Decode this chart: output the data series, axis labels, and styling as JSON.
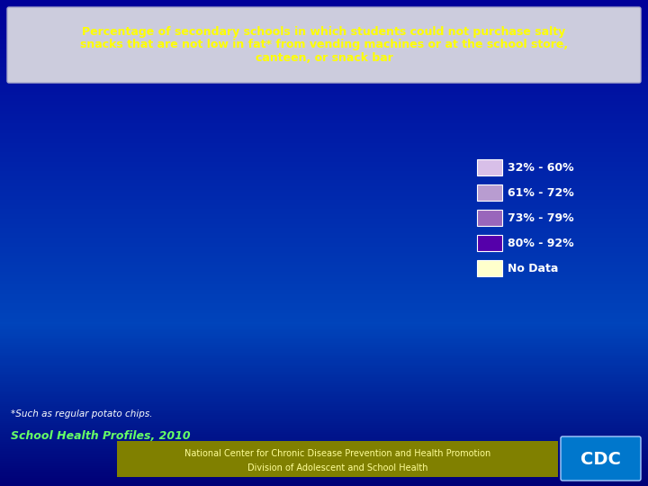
{
  "title_line1": "Percentage of secondary schools in which students could not purchase salty",
  "title_line2": "snacks that are not low in fat* from vending machines or at the school store,",
  "title_line3": "canteen, or snack bar",
  "title_color": "#FFFF00",
  "background_color": "#0000AA",
  "bg_gradient_top": "#0033CC",
  "bg_gradient_bottom": "#000088",
  "legend_labels": [
    "32% - 60%",
    "61% - 72%",
    "73% - 79%",
    "80% - 92%",
    "No Data"
  ],
  "legend_colors": [
    "#D8BFE8",
    "#B89CD0",
    "#9966BB",
    "#5500AA",
    "#FFFFCC"
  ],
  "legend_text_color": "#FFFFFF",
  "footnote": "*Such as regular potato chips.",
  "footnote_color": "#FFFFFF",
  "source_label": "School Health Profiles, 2010",
  "source_color": "#66FF66",
  "bottom_bar_color": "#808000",
  "bottom_text1": "National Center for Chronic Disease Prevention and Health Promotion",
  "bottom_text2": "Division of Adolescent and School Health",
  "bottom_text_color": "#FFFF99",
  "state_colors": {
    "AL": "#5500AA",
    "AK": "#9966BB",
    "AZ": "#9966BB",
    "AR": "#9966BB",
    "CA": "#5500AA",
    "CO": "#B89CD0",
    "CT": "#9966BB",
    "DE": "#9966BB",
    "FL": "#B89CD0",
    "GA": "#B89CD0",
    "HI": "#D8BFE8",
    "ID": "#B89CD0",
    "IL": "#FFFFCC",
    "IN": "#9966BB",
    "IA": "#B89CD0",
    "KS": "#B89CD0",
    "KY": "#5500AA",
    "LA": "#5500AA",
    "ME": "#5500AA",
    "MD": "#9966BB",
    "MA": "#9966BB",
    "MI": "#5500AA",
    "MN": "#9966BB",
    "MS": "#5500AA",
    "MO": "#9966BB",
    "MT": "#B89CD0",
    "NE": "#B89CD0",
    "NV": "#5500AA",
    "NH": "#9966BB",
    "NJ": "#9966BB",
    "NM": "#B89CD0",
    "NY": "#B89CD0",
    "NC": "#B89CD0",
    "ND": "#5500AA",
    "OH": "#9966BB",
    "OK": "#9966BB",
    "OR": "#D8BFE8",
    "PA": "#B89CD0",
    "RI": "#9966BB",
    "SC": "#B89CD0",
    "SD": "#B89CD0",
    "TN": "#9966BB",
    "TX": "#9966BB",
    "UT": "#D8BFE8",
    "VT": "#9966BB",
    "VA": "#9966BB",
    "WA": "#D8BFE8",
    "WV": "#5500AA",
    "WI": "#9966BB",
    "WY": "#B89CD0"
  }
}
